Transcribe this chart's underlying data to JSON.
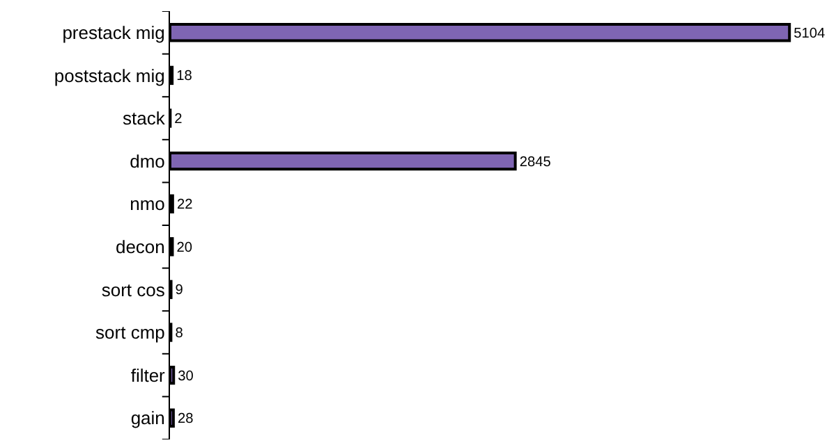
{
  "chart_data": {
    "type": "bar",
    "orientation": "horizontal",
    "categories": [
      "prestack mig",
      "poststack mig",
      "stack",
      "dmo",
      "nmo",
      "decon",
      "sort cos",
      "sort cmp",
      "filter",
      "gain"
    ],
    "values": [
      5104,
      18,
      2,
      2845,
      22,
      20,
      9,
      8,
      30,
      28
    ],
    "color": "#7f65b3",
    "data_labels": true,
    "tick_labels": "y",
    "grid": false,
    "legend": false
  }
}
